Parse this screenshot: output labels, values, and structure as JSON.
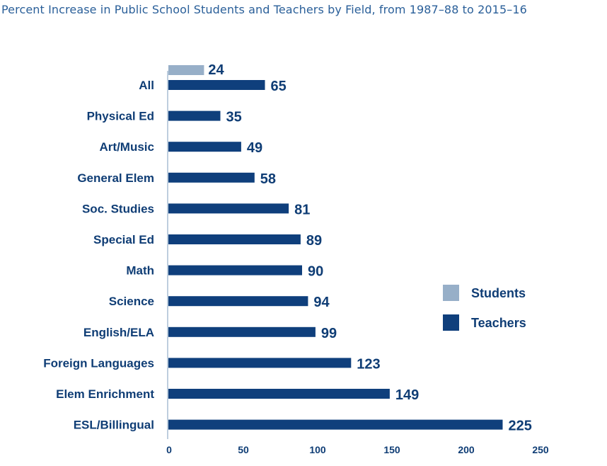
{
  "chart_data": {
    "type": "bar",
    "orientation": "horizontal",
    "title": "Percent Increase in Public School Students and Teachers by Field, from 1987–88 to 2015–16",
    "categories": [
      "All",
      "Physical Ed",
      "Art/Music",
      "General Elem",
      "Soc. Studies",
      "Special Ed",
      "Math",
      "Science",
      "English/ELA",
      "Foreign Languages",
      "Elem Enrichment",
      "ESL/Billingual"
    ],
    "series": [
      {
        "name": "Students",
        "color": "#97afc8",
        "values": [
          24,
          null,
          null,
          null,
          null,
          null,
          null,
          null,
          null,
          null,
          null,
          null
        ]
      },
      {
        "name": "Teachers",
        "color": "#0f3f7c",
        "values": [
          65,
          35,
          49,
          58,
          81,
          89,
          90,
          94,
          99,
          123,
          149,
          225
        ]
      }
    ],
    "xlim": [
      0,
      250
    ],
    "xticks": [
      "0",
      "50",
      "100",
      "150",
      "200",
      "250"
    ],
    "legend_position": "right",
    "grid": false
  }
}
